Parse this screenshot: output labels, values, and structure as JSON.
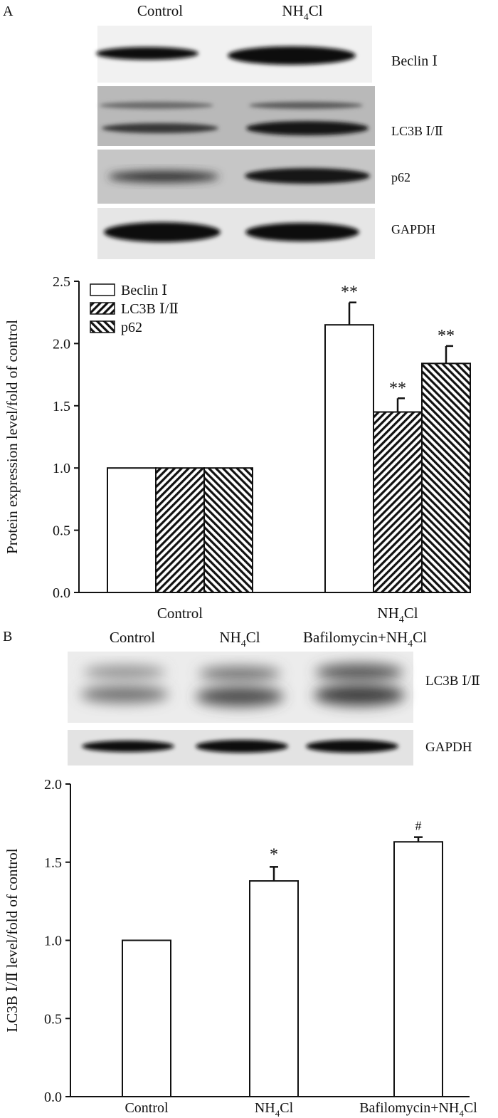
{
  "panel_a": {
    "letter": "A",
    "blot": {
      "lanes": [
        "Control",
        "NH4Cl"
      ],
      "rows": [
        "Beclin Ⅰ",
        "LC3B Ⅰ/Ⅱ",
        "p62",
        "GAPDH"
      ]
    }
  },
  "panel_b": {
    "letter": "B",
    "blot": {
      "lanes": [
        "Control",
        "NH4Cl",
        "Bafilomycin+NH4Cl"
      ],
      "rows": [
        "LC3B Ⅰ/Ⅱ",
        "GAPDH"
      ]
    }
  },
  "colors": {
    "ink": "#111111",
    "bar_fill": "#ffffff",
    "blot_bg": "#e9e9e9"
  },
  "chart_data": [
    {
      "type": "bar",
      "panel": "A",
      "categories": [
        "Control",
        "NH4Cl"
      ],
      "series": [
        {
          "name": "Beclin Ⅰ",
          "pattern": "open",
          "values": [
            1.0,
            2.15
          ],
          "errors": [
            0,
            0.18
          ],
          "annotations": [
            "",
            "**"
          ]
        },
        {
          "name": "LC3B Ⅰ/Ⅱ",
          "pattern": "hatch-up",
          "values": [
            1.0,
            1.45
          ],
          "errors": [
            0,
            0.11
          ],
          "annotations": [
            "",
            "**"
          ]
        },
        {
          "name": "p62",
          "pattern": "hatch-down",
          "values": [
            1.0,
            1.84
          ],
          "errors": [
            0,
            0.14
          ],
          "annotations": [
            "",
            "**"
          ]
        }
      ],
      "ylabel": "Protein expression level/fold of control",
      "ylim": [
        0,
        2.5
      ],
      "yticks": [
        "0.0",
        "0.5",
        "1.0",
        "1.5",
        "2.0",
        "2.5"
      ],
      "legend": "top-left",
      "grid": false
    },
    {
      "type": "bar",
      "panel": "B",
      "categories": [
        "Control",
        "NH4Cl",
        "Bafilomycin+NH4Cl"
      ],
      "values": [
        1.0,
        1.38,
        1.63
      ],
      "errors": [
        0,
        0.09,
        0.03
      ],
      "annotations": [
        "",
        "*",
        "#"
      ],
      "ylabel": "LC3B Ⅰ/Ⅱ  level/fold of control",
      "ylim": [
        0,
        2.0
      ],
      "yticks": [
        "0.0",
        "0.5",
        "1.0",
        "1.5",
        "2.0"
      ],
      "grid": false
    }
  ]
}
